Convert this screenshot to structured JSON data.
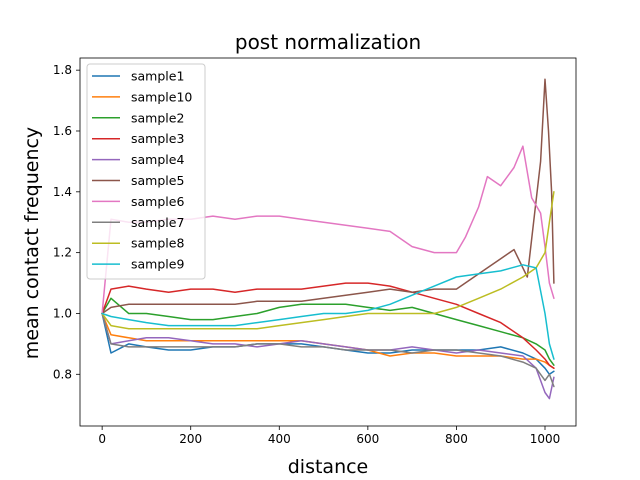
{
  "chart_data": {
    "type": "line",
    "title": "post normalization",
    "xlabel": "distance",
    "ylabel": "mean contact frequency",
    "xlim": [
      -50,
      1070
    ],
    "ylim": [
      0.63,
      1.84
    ],
    "xticks": [
      0,
      200,
      400,
      600,
      800,
      1000
    ],
    "yticks": [
      0.8,
      1.0,
      1.2,
      1.4,
      1.6,
      1.8
    ],
    "xtick_labels": [
      "0",
      "200",
      "400",
      "600",
      "800",
      "1000"
    ],
    "ytick_labels": [
      "0.8",
      "1.0",
      "1.2",
      "1.4",
      "1.6",
      "1.8"
    ],
    "legend_position": "upper-left",
    "series": [
      {
        "name": "sample1",
        "color": "#1f77b4",
        "x": [
          0,
          20,
          60,
          100,
          150,
          200,
          250,
          300,
          350,
          400,
          450,
          500,
          550,
          600,
          650,
          700,
          750,
          800,
          850,
          900,
          950,
          980,
          1000,
          1010,
          1020
        ],
        "y": [
          1.0,
          0.87,
          0.9,
          0.89,
          0.88,
          0.88,
          0.89,
          0.89,
          0.9,
          0.9,
          0.9,
          0.89,
          0.88,
          0.87,
          0.87,
          0.88,
          0.88,
          0.88,
          0.88,
          0.89,
          0.87,
          0.85,
          0.82,
          0.8,
          0.81
        ]
      },
      {
        "name": "sample10",
        "color": "#ff7f0e",
        "x": [
          0,
          20,
          60,
          100,
          150,
          200,
          250,
          300,
          350,
          400,
          450,
          500,
          550,
          600,
          650,
          700,
          750,
          800,
          850,
          900,
          950,
          980,
          1000,
          1010,
          1020
        ],
        "y": [
          1.0,
          0.93,
          0.92,
          0.91,
          0.91,
          0.91,
          0.91,
          0.91,
          0.91,
          0.91,
          0.91,
          0.9,
          0.89,
          0.88,
          0.86,
          0.87,
          0.87,
          0.86,
          0.86,
          0.86,
          0.85,
          0.85,
          0.84,
          0.83,
          0.82
        ]
      },
      {
        "name": "sample2",
        "color": "#2ca02c",
        "x": [
          0,
          20,
          60,
          100,
          150,
          200,
          250,
          300,
          350,
          400,
          450,
          500,
          550,
          600,
          650,
          700,
          750,
          800,
          850,
          900,
          950,
          980,
          1000,
          1010,
          1020
        ],
        "y": [
          1.0,
          1.05,
          1.0,
          1.0,
          0.99,
          0.98,
          0.98,
          0.99,
          1.0,
          1.02,
          1.03,
          1.03,
          1.03,
          1.02,
          1.01,
          1.02,
          1.0,
          0.98,
          0.96,
          0.94,
          0.92,
          0.9,
          0.88,
          0.85,
          0.83
        ]
      },
      {
        "name": "sample3",
        "color": "#d62728",
        "x": [
          0,
          20,
          60,
          100,
          150,
          200,
          250,
          300,
          350,
          400,
          450,
          500,
          550,
          600,
          650,
          700,
          750,
          800,
          850,
          900,
          950,
          980,
          1000,
          1010,
          1020
        ],
        "y": [
          1.0,
          1.08,
          1.09,
          1.08,
          1.07,
          1.08,
          1.08,
          1.07,
          1.08,
          1.08,
          1.08,
          1.09,
          1.1,
          1.1,
          1.09,
          1.07,
          1.05,
          1.03,
          1.0,
          0.97,
          0.92,
          0.88,
          0.85,
          0.83,
          0.82
        ]
      },
      {
        "name": "sample4",
        "color": "#9467bd",
        "x": [
          0,
          20,
          60,
          100,
          150,
          200,
          250,
          300,
          350,
          400,
          450,
          500,
          550,
          600,
          650,
          700,
          750,
          800,
          850,
          900,
          950,
          980,
          1000,
          1010,
          1020
        ],
        "y": [
          1.0,
          0.9,
          0.91,
          0.92,
          0.92,
          0.91,
          0.9,
          0.9,
          0.89,
          0.9,
          0.91,
          0.9,
          0.89,
          0.88,
          0.88,
          0.89,
          0.88,
          0.87,
          0.88,
          0.87,
          0.86,
          0.82,
          0.74,
          0.72,
          0.79
        ]
      },
      {
        "name": "sample5",
        "color": "#8c564b",
        "x": [
          0,
          20,
          60,
          100,
          150,
          200,
          250,
          300,
          350,
          400,
          450,
          500,
          550,
          600,
          650,
          700,
          750,
          800,
          850,
          900,
          930,
          960,
          990,
          1000,
          1008,
          1015,
          1020
        ],
        "y": [
          1.0,
          1.02,
          1.03,
          1.03,
          1.03,
          1.03,
          1.03,
          1.03,
          1.04,
          1.04,
          1.04,
          1.05,
          1.06,
          1.07,
          1.08,
          1.07,
          1.08,
          1.08,
          1.13,
          1.18,
          1.21,
          1.12,
          1.5,
          1.77,
          1.6,
          1.4,
          1.1
        ]
      },
      {
        "name": "sample6",
        "color": "#e377c2",
        "x": [
          0,
          20,
          60,
          100,
          150,
          200,
          250,
          300,
          350,
          400,
          450,
          500,
          550,
          600,
          650,
          700,
          750,
          800,
          820,
          850,
          870,
          900,
          930,
          950,
          970,
          990,
          1000,
          1010,
          1020
        ],
        "y": [
          1.0,
          1.31,
          1.3,
          1.3,
          1.31,
          1.31,
          1.32,
          1.31,
          1.32,
          1.32,
          1.31,
          1.3,
          1.29,
          1.28,
          1.27,
          1.22,
          1.2,
          1.2,
          1.25,
          1.35,
          1.45,
          1.42,
          1.48,
          1.55,
          1.38,
          1.33,
          1.22,
          1.1,
          1.05
        ]
      },
      {
        "name": "sample7",
        "color": "#7f7f7f",
        "x": [
          0,
          20,
          60,
          100,
          150,
          200,
          250,
          300,
          350,
          400,
          450,
          500,
          550,
          600,
          650,
          700,
          750,
          800,
          850,
          900,
          950,
          980,
          1000,
          1010,
          1020
        ],
        "y": [
          1.0,
          0.9,
          0.89,
          0.89,
          0.89,
          0.89,
          0.89,
          0.89,
          0.9,
          0.9,
          0.89,
          0.89,
          0.88,
          0.88,
          0.88,
          0.87,
          0.88,
          0.88,
          0.87,
          0.86,
          0.84,
          0.82,
          0.78,
          0.8,
          0.76
        ]
      },
      {
        "name": "sample8",
        "color": "#bcbd22",
        "x": [
          0,
          20,
          60,
          100,
          150,
          200,
          250,
          300,
          350,
          400,
          450,
          500,
          550,
          600,
          650,
          700,
          750,
          800,
          850,
          900,
          950,
          980,
          1000,
          1010,
          1020
        ],
        "y": [
          1.0,
          0.96,
          0.95,
          0.95,
          0.95,
          0.95,
          0.95,
          0.95,
          0.95,
          0.96,
          0.97,
          0.98,
          0.99,
          1.0,
          1.0,
          1.0,
          1.0,
          1.02,
          1.05,
          1.08,
          1.12,
          1.15,
          1.2,
          1.3,
          1.4
        ]
      },
      {
        "name": "sample9",
        "color": "#17becf",
        "x": [
          0,
          20,
          60,
          100,
          150,
          200,
          250,
          300,
          350,
          400,
          450,
          500,
          550,
          600,
          650,
          700,
          750,
          800,
          850,
          900,
          950,
          980,
          1000,
          1010,
          1020
        ],
        "y": [
          1.0,
          0.99,
          0.98,
          0.97,
          0.96,
          0.96,
          0.96,
          0.96,
          0.97,
          0.98,
          0.99,
          1.0,
          1.0,
          1.01,
          1.03,
          1.06,
          1.09,
          1.12,
          1.13,
          1.14,
          1.16,
          1.15,
          1.0,
          0.9,
          0.85
        ]
      }
    ]
  }
}
